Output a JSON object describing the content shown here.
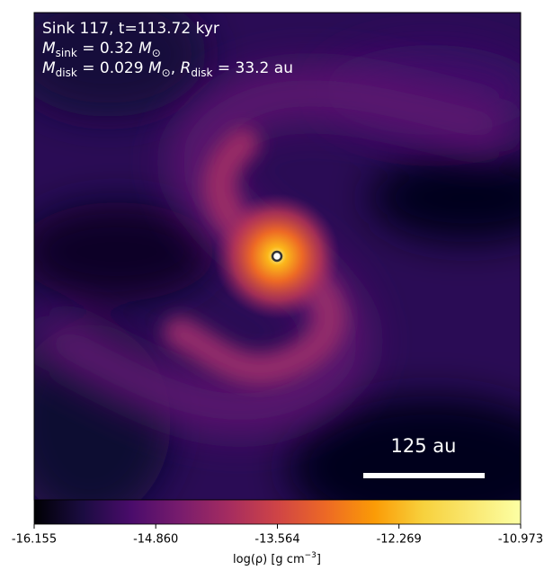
{
  "chart_data": {
    "type": "density-map",
    "annotations": [
      [
        "Sink 117, t=113.72 kyr"
      ],
      [
        "M",
        "sink",
        " = 0.32 ",
        "M",
        "⊙"
      ],
      [
        "M",
        "disk",
        " = 0.029 ",
        "M",
        "⊙",
        ", ",
        "R",
        "disk",
        " = 33.2 au"
      ]
    ],
    "scale_bar": "125 au",
    "colorbar": {
      "label": [
        "log(ρ) [g cm",
        "−3",
        "]"
      ],
      "lim": [
        -16.155,
        -10.973
      ],
      "ticks": [
        -16.155,
        {
          "value": -14.86,
          "label": "-14.860"
        },
        -13.564,
        -12.269,
        -10.973
      ]
    }
  }
}
